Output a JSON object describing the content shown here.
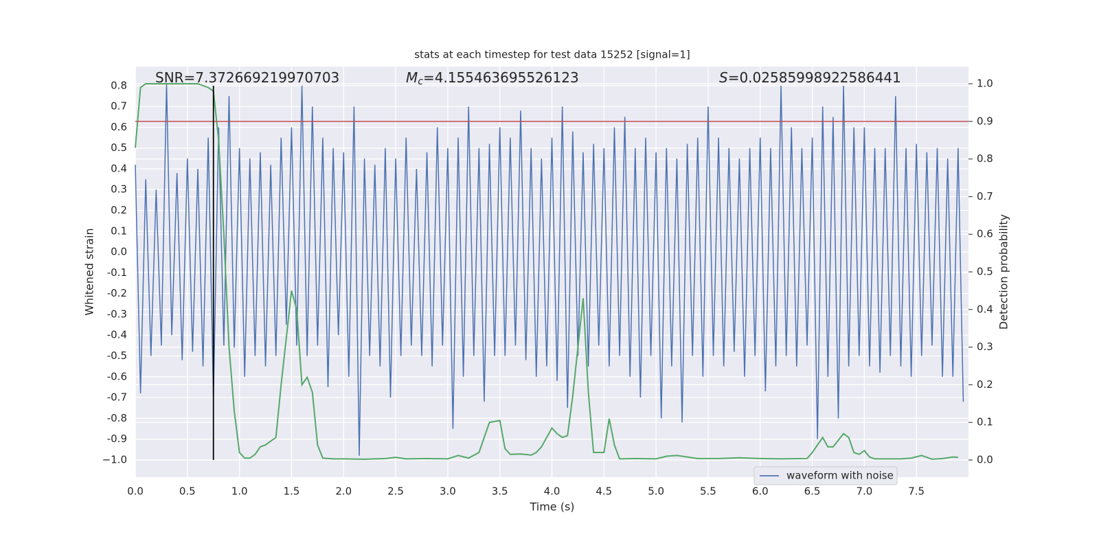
{
  "chart_data": {
    "type": "line",
    "title": "stats at each timestep for test data 15252 [signal=1]",
    "xlabel": "Time (s)",
    "ylabel": "Whitened strain",
    "y2label": "Detection probability",
    "xlim": [
      0,
      8.0
    ],
    "ylim": [
      -1.083,
      0.892
    ],
    "y2lim": [
      -0.0456,
      1.0456
    ],
    "xticks": [
      {
        "value": 0,
        "label": "0.0"
      },
      {
        "value": 0.5,
        "label": "0.5"
      },
      {
        "value": 1,
        "label": "1.0"
      },
      {
        "value": 1.5,
        "label": "1.5"
      },
      {
        "value": 2,
        "label": "2.0"
      },
      {
        "value": 2.5,
        "label": "2.5"
      },
      {
        "value": 3,
        "label": "3.0"
      },
      {
        "value": 3.5,
        "label": "3.5"
      },
      {
        "value": 4,
        "label": "4.0"
      },
      {
        "value": 4.5,
        "label": "4.5"
      },
      {
        "value": 5,
        "label": "5.0"
      },
      {
        "value": 5.5,
        "label": "5.5"
      },
      {
        "value": 6,
        "label": "6.0"
      },
      {
        "value": 6.5,
        "label": "6.5"
      },
      {
        "value": 7,
        "label": "7.0"
      },
      {
        "value": 7.5,
        "label": "7.5"
      }
    ],
    "yticks": [
      {
        "value": -1,
        "label": "−1.0"
      },
      -0.9,
      -0.8,
      -0.7,
      -0.6,
      -0.5,
      -0.4,
      -0.3,
      -0.2,
      -0.1,
      {
        "value": 0,
        "label": "0.0"
      },
      0.1,
      0.2,
      0.3,
      0.4,
      0.5,
      0.6,
      0.7,
      0.8
    ],
    "y2ticks": [
      {
        "value": 0,
        "label": "0.0"
      },
      0.1,
      0.2,
      0.3,
      0.4,
      0.5,
      0.6,
      0.7,
      0.8,
      0.9,
      {
        "value": 1,
        "label": "1.0"
      }
    ],
    "grid": true,
    "legend": "lower right",
    "series": [
      {
        "name": "waveform with noise",
        "color": "#4c72b0",
        "x": [
          0,
          0.05,
          0.1,
          0.15,
          0.2,
          0.25,
          0.3,
          0.35,
          0.4,
          0.45,
          0.5,
          0.55,
          0.6,
          0.65,
          0.7,
          0.75,
          0.8,
          0.85,
          0.9,
          0.95,
          1,
          1.05,
          1.1,
          1.15,
          1.2,
          1.25,
          1.3,
          1.35,
          1.4,
          1.45,
          1.5,
          1.55,
          1.6,
          1.65,
          1.7,
          1.75,
          1.8,
          1.85,
          1.9,
          1.95,
          2,
          2.05,
          2.1,
          2.15,
          2.2,
          2.25,
          2.3,
          2.35,
          2.4,
          2.45,
          2.5,
          2.55,
          2.6,
          2.65,
          2.7,
          2.75,
          2.8,
          2.85,
          2.9,
          2.95,
          3,
          3.05,
          3.1,
          3.15,
          3.2,
          3.25,
          3.3,
          3.35,
          3.4,
          3.45,
          3.5,
          3.55,
          3.6,
          3.65,
          3.7,
          3.75,
          3.8,
          3.85,
          3.9,
          3.95,
          4,
          4.05,
          4.1,
          4.15,
          4.2,
          4.25,
          4.3,
          4.35,
          4.4,
          4.45,
          4.5,
          4.55,
          4.6,
          4.65,
          4.7,
          4.75,
          4.8,
          4.85,
          4.9,
          4.95,
          5,
          5.05,
          5.1,
          5.15,
          5.2,
          5.25,
          5.3,
          5.35,
          5.4,
          5.45,
          5.5,
          5.55,
          5.6,
          5.65,
          5.7,
          5.75,
          5.8,
          5.85,
          5.9,
          5.95,
          6,
          6.05,
          6.1,
          6.15,
          6.2,
          6.25,
          6.3,
          6.35,
          6.4,
          6.45,
          6.5,
          6.55,
          6.6,
          6.65,
          6.7,
          6.75,
          6.8,
          6.85,
          6.9,
          6.95,
          7,
          7.05,
          7.1,
          7.15,
          7.2,
          7.25,
          7.3,
          7.35,
          7.4,
          7.45,
          7.5,
          7.55,
          7.6,
          7.65,
          7.7,
          7.75,
          7.8,
          7.85,
          7.9,
          7.95
        ],
        "values": [
          0.42,
          -0.68,
          0.35,
          -0.5,
          0.3,
          -0.45,
          0.81,
          -0.4,
          0.38,
          -0.52,
          0.45,
          -0.48,
          0.4,
          -0.55,
          0.55,
          -0.7,
          0.6,
          -0.45,
          0.75,
          -0.46,
          0.5,
          -0.6,
          0.45,
          -0.5,
          0.48,
          -0.55,
          0.42,
          -0.5,
          0.55,
          -0.35,
          0.6,
          -0.45,
          0.8,
          -0.5,
          0.7,
          -0.45,
          0.55,
          -0.65,
          0.5,
          -0.4,
          0.48,
          -0.6,
          0.7,
          -0.98,
          0.45,
          -0.5,
          0.42,
          -0.55,
          0.5,
          -0.7,
          0.45,
          -0.5,
          0.55,
          -0.45,
          0.4,
          -0.5,
          0.48,
          -0.55,
          0.6,
          -0.45,
          0.5,
          -0.85,
          0.55,
          -0.6,
          0.7,
          -0.5,
          0.5,
          -0.72,
          0.52,
          -0.5,
          0.6,
          -0.5,
          0.55,
          -0.45,
          0.68,
          -0.52,
          0.5,
          -0.6,
          0.45,
          -0.55,
          0.55,
          -0.62,
          0.7,
          -0.75,
          0.58,
          -0.5,
          0.48,
          -0.55,
          0.52,
          -0.45,
          0.5,
          -0.55,
          0.6,
          -0.5,
          0.65,
          -0.6,
          0.5,
          -0.7,
          0.55,
          -0.5,
          0.48,
          -0.8,
          0.5,
          -0.55,
          0.45,
          -0.82,
          0.52,
          -0.5,
          0.55,
          -0.6,
          0.7,
          -0.5,
          0.55,
          -0.55,
          0.5,
          -0.48,
          0.45,
          -0.6,
          0.5,
          -0.5,
          0.55,
          -0.67,
          0.5,
          -0.55,
          0.8,
          -0.5,
          0.6,
          -0.55,
          0.5,
          -0.45,
          0.55,
          -0.9,
          0.7,
          -0.6,
          0.65,
          -0.8,
          0.8,
          -0.55,
          0.6,
          -0.5,
          0.6,
          -0.55,
          0.5,
          -0.58,
          0.5,
          -0.5,
          0.75,
          -0.55,
          0.5,
          -0.6,
          0.52,
          -0.5,
          0.48,
          -0.45,
          0.5,
          -0.6,
          0.45,
          -0.6,
          0.5,
          -0.72
        ]
      },
      {
        "color": "#55a868",
        "axis": "y2",
        "x": [
          0,
          0.05,
          0.1,
          0.2,
          0.3,
          0.4,
          0.5,
          0.6,
          0.7,
          0.75,
          0.8,
          0.85,
          0.9,
          0.95,
          1,
          1.05,
          1.1,
          1.15,
          1.2,
          1.25,
          1.3,
          1.35,
          1.4,
          1.5,
          1.55,
          1.6,
          1.65,
          1.7,
          1.75,
          1.8,
          1.9,
          2,
          2.2,
          2.4,
          2.5,
          2.6,
          2.8,
          3,
          3.1,
          3.2,
          3.3,
          3.4,
          3.5,
          3.55,
          3.6,
          3.7,
          3.8,
          3.85,
          3.9,
          4,
          4.05,
          4.1,
          4.15,
          4.2,
          4.3,
          4.35,
          4.4,
          4.5,
          4.55,
          4.6,
          4.65,
          4.8,
          5,
          5.1,
          5.2,
          5.4,
          5.6,
          5.8,
          6,
          6.2,
          6.45,
          6.5,
          6.6,
          6.65,
          6.7,
          6.8,
          6.85,
          6.9,
          6.95,
          7,
          7.05,
          7.1,
          7.2,
          7.35,
          7.45,
          7.55,
          7.65,
          7.75,
          7.85,
          7.9
        ],
        "values": [
          0.83,
          0.99,
          1.0,
          1.0,
          1.0,
          1.0,
          1.0,
          1.0,
          0.99,
          0.98,
          0.85,
          0.6,
          0.3,
          0.13,
          0.02,
          0.005,
          0.005,
          0.015,
          0.035,
          0.04,
          0.05,
          0.06,
          0.2,
          0.45,
          0.4,
          0.2,
          0.22,
          0.18,
          0.04,
          0.005,
          0.003,
          0.003,
          0.002,
          0.004,
          0.007,
          0.003,
          0.004,
          0.003,
          0.012,
          0.005,
          0.02,
          0.1,
          0.105,
          0.03,
          0.015,
          0.016,
          0.013,
          0.02,
          0.035,
          0.085,
          0.07,
          0.06,
          0.065,
          0.17,
          0.43,
          0.18,
          0.02,
          0.02,
          0.11,
          0.04,
          0.003,
          0.004,
          0.003,
          0.01,
          0.012,
          0.004,
          0.004,
          0.006,
          0.004,
          0.003,
          0.004,
          0.02,
          0.06,
          0.035,
          0.035,
          0.07,
          0.06,
          0.02,
          0.015,
          0.025,
          0.008,
          0.003,
          0.003,
          0.003,
          0.005,
          0.012,
          0.002,
          0.004,
          0.008,
          0.007
        ]
      }
    ],
    "hline": {
      "value": 0.9,
      "axis": "y2",
      "color": "#c44e52"
    },
    "vline": {
      "x": 0.75,
      "ymin": -1.0,
      "ymax": 0.8,
      "color": "#000000"
    },
    "annotations": [
      {
        "text": "SNR=7.372669219970703"
      },
      {
        "symbol": "M",
        "subscript": "c",
        "text": "=4.155463695526123"
      },
      {
        "symbol": "S",
        "text": "=0.02585998922586441"
      }
    ]
  }
}
